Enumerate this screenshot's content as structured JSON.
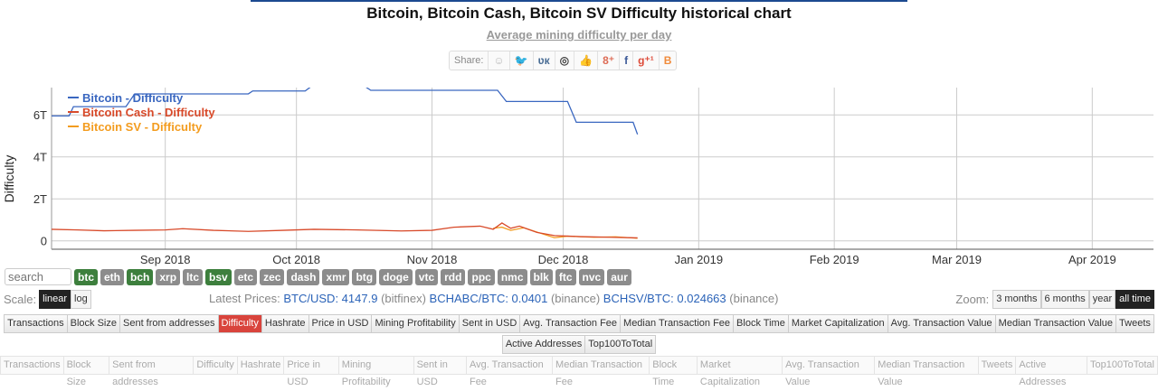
{
  "title": "Bitcoin, Bitcoin Cash, Bitcoin SV Difficulty historical chart",
  "subtitle": "Average mining difficulty per day",
  "share": {
    "label": "Share:",
    "icons": [
      "reddit-icon",
      "twitter-icon",
      "vk-icon",
      "weibo-icon",
      "like-icon",
      "google-plus-icon",
      "facebook-icon",
      "google-plus-one-icon",
      "blogger-icon"
    ]
  },
  "colors": {
    "btc": "#3a67c0",
    "bch": "#d84a2a",
    "bsv": "#f39c1f",
    "active_tab": "#d9443c",
    "coin_on": "#3d7f3d"
  },
  "chart_data": {
    "type": "line",
    "ylabel": "Difficulty",
    "xlim": [
      "2018-08-06",
      "2019-04-15"
    ],
    "ylim": [
      -0.4,
      7.3
    ],
    "yticks": [
      {
        "v": 0,
        "label": "0"
      },
      {
        "v": 2,
        "label": "2T"
      },
      {
        "v": 4,
        "label": "4T"
      },
      {
        "v": 6,
        "label": "6T"
      }
    ],
    "xticks": [
      {
        "d": "2018-09-01",
        "label": "Sep 2018"
      },
      {
        "d": "2018-10-01",
        "label": "Oct 2018"
      },
      {
        "d": "2018-11-01",
        "label": "Nov 2018"
      },
      {
        "d": "2018-12-01",
        "label": "Dec 2018"
      },
      {
        "d": "2019-01-01",
        "label": "Jan 2019"
      },
      {
        "d": "2019-02-01",
        "label": "Feb 2019"
      },
      {
        "d": "2019-03-01",
        "label": "Mar 2019"
      },
      {
        "d": "2019-04-01",
        "label": "Apr 2019"
      }
    ],
    "grid": true,
    "legend": "top-left",
    "series": [
      {
        "name": "Bitcoin - Difficulty",
        "color": "#3a67c0",
        "points": [
          [
            "2018-08-06",
            5.95
          ],
          [
            "2018-08-10",
            5.95
          ],
          [
            "2018-08-11",
            6.39
          ],
          [
            "2018-08-23",
            6.39
          ],
          [
            "2018-08-25",
            7.0
          ],
          [
            "2018-09-20",
            7.0
          ],
          [
            "2018-09-21",
            7.14
          ],
          [
            "2018-10-03",
            7.14
          ],
          [
            "2018-10-05",
            7.45
          ],
          [
            "2018-10-16",
            7.45
          ],
          [
            "2018-10-18",
            7.17
          ],
          [
            "2018-11-16",
            7.17
          ],
          [
            "2018-11-18",
            6.64
          ],
          [
            "2018-12-02",
            6.64
          ],
          [
            "2018-12-04",
            5.65
          ],
          [
            "2018-12-17",
            5.65
          ],
          [
            "2018-12-18",
            5.07
          ]
        ]
      },
      {
        "name": "Bitcoin Cash - Difficulty",
        "color": "#d84a2a",
        "points": [
          [
            "2018-08-06",
            0.55
          ],
          [
            "2018-08-12",
            0.52
          ],
          [
            "2018-08-18",
            0.48
          ],
          [
            "2018-08-25",
            0.5
          ],
          [
            "2018-09-01",
            0.52
          ],
          [
            "2018-09-05",
            0.58
          ],
          [
            "2018-09-12",
            0.5
          ],
          [
            "2018-09-20",
            0.45
          ],
          [
            "2018-09-28",
            0.5
          ],
          [
            "2018-10-05",
            0.55
          ],
          [
            "2018-10-15",
            0.52
          ],
          [
            "2018-10-25",
            0.47
          ],
          [
            "2018-11-01",
            0.5
          ],
          [
            "2018-11-06",
            0.65
          ],
          [
            "2018-11-12",
            0.7
          ],
          [
            "2018-11-15",
            0.55
          ],
          [
            "2018-11-17",
            0.85
          ],
          [
            "2018-11-19",
            0.6
          ],
          [
            "2018-11-21",
            0.7
          ],
          [
            "2018-11-25",
            0.4
          ],
          [
            "2018-11-29",
            0.25
          ],
          [
            "2018-12-05",
            0.2
          ],
          [
            "2018-12-12",
            0.17
          ],
          [
            "2018-12-18",
            0.14
          ]
        ]
      },
      {
        "name": "Bitcoin SV - Difficulty",
        "color": "#f39c1f",
        "points": [
          [
            "2018-11-15",
            0.6
          ],
          [
            "2018-11-17",
            0.65
          ],
          [
            "2018-11-19",
            0.5
          ],
          [
            "2018-11-22",
            0.62
          ],
          [
            "2018-11-26",
            0.35
          ],
          [
            "2018-11-29",
            0.15
          ],
          [
            "2018-12-02",
            0.22
          ],
          [
            "2018-12-08",
            0.17
          ],
          [
            "2018-12-13",
            0.19
          ],
          [
            "2018-12-18",
            0.12
          ]
        ]
      }
    ]
  },
  "search": {
    "placeholder": "search"
  },
  "coins": [
    {
      "l": "btc",
      "on": true
    },
    {
      "l": "eth"
    },
    {
      "l": "bch",
      "on": true
    },
    {
      "l": "xrp"
    },
    {
      "l": "ltc"
    },
    {
      "l": "bsv",
      "on": true
    },
    {
      "l": "etc"
    },
    {
      "l": "zec"
    },
    {
      "l": "dash"
    },
    {
      "l": "xmr"
    },
    {
      "l": "btg"
    },
    {
      "l": "doge"
    },
    {
      "l": "vtc"
    },
    {
      "l": "rdd"
    },
    {
      "l": "ppc"
    },
    {
      "l": "nmc"
    },
    {
      "l": "blk"
    },
    {
      "l": "ftc"
    },
    {
      "l": "nvc"
    },
    {
      "l": "aur"
    }
  ],
  "scale": {
    "label": "Scale:",
    "linear": "linear",
    "log": "log",
    "selected": "linear"
  },
  "prices": {
    "label": "Latest Prices:",
    "items": [
      {
        "pair": "BTC/USD: 4147.9",
        "src": "(bitfinex)"
      },
      {
        "pair": "BCHABC/BTC: 0.0401",
        "src": "(binance)"
      },
      {
        "pair": "BCHSV/BTC: 0.024663",
        "src": "(binance)"
      }
    ]
  },
  "zoom": {
    "label": "Zoom:",
    "options": [
      "3 months",
      "6 months",
      "year",
      "all time"
    ],
    "selected": "all time"
  },
  "tabs": [
    "Transactions",
    "Block Size",
    "Sent from addresses",
    "Difficulty",
    "Hashrate",
    "Price in USD",
    "Mining Profitability",
    "Sent in USD",
    "Avg. Transaction Fee",
    "Median Transaction Fee",
    "Block Time",
    "Market Capitalization",
    "Avg. Transaction Value",
    "Median Transaction Value",
    "Tweets",
    "Active Addresses",
    "Top100ToTotal"
  ],
  "active_tab": "Difficulty"
}
